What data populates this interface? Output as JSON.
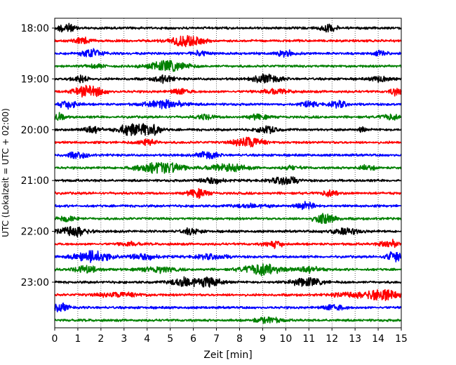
{
  "chart_data": {
    "type": "line",
    "subtype": "helicorder-seismogram",
    "title": "",
    "xlabel": "Zeit  [min]",
    "ylabel": "UTC (Lokalzeit = UTC + 02:00)",
    "xlim": [
      0,
      15
    ],
    "x_ticks": [
      "0",
      "1",
      "2",
      "3",
      "4",
      "5",
      "6",
      "7",
      "8",
      "9",
      "10",
      "11",
      "12",
      "13",
      "14",
      "15"
    ],
    "y_tick_labels": [
      "18:00",
      "19:00",
      "20:00",
      "21:00",
      "22:00",
      "23:00"
    ],
    "rows_per_hour": 4,
    "row_minutes": 15,
    "grid": "vertical dotted at each minute",
    "color_cycle": [
      "#000000",
      "#ff0000",
      "#0000ff",
      "#008000"
    ],
    "series": [
      {
        "start": "18:00",
        "bursts": [
          {
            "t": 0.5,
            "a": 0.9,
            "w": 0.25
          },
          {
            "t": 11.8,
            "a": 0.6,
            "w": 0.3
          }
        ]
      },
      {
        "start": "18:15",
        "bursts": [
          {
            "t": 1.2,
            "a": 0.5,
            "w": 0.3
          },
          {
            "t": 5.7,
            "a": 1.0,
            "w": 0.5
          }
        ]
      },
      {
        "start": "18:30",
        "bursts": [
          {
            "t": 1.6,
            "a": 0.8,
            "w": 0.3
          },
          {
            "t": 6.3,
            "a": 0.4,
            "w": 0.3
          },
          {
            "t": 10.0,
            "a": 0.5,
            "w": 0.3
          },
          {
            "t": 14.1,
            "a": 0.4,
            "w": 0.2
          }
        ]
      },
      {
        "start": "18:45",
        "bursts": [
          {
            "t": 4.9,
            "a": 0.9,
            "w": 0.6
          },
          {
            "t": 1.8,
            "a": 0.3,
            "w": 0.3
          }
        ]
      },
      {
        "start": "19:00",
        "bursts": [
          {
            "t": 1.1,
            "a": 0.6,
            "w": 0.3
          },
          {
            "t": 4.7,
            "a": 0.6,
            "w": 0.3
          },
          {
            "t": 9.2,
            "a": 0.8,
            "w": 0.4
          },
          {
            "t": 14.1,
            "a": 0.5,
            "w": 0.3
          }
        ]
      },
      {
        "start": "19:15",
        "bursts": [
          {
            "t": 1.5,
            "a": 1.0,
            "w": 0.45
          },
          {
            "t": 5.5,
            "a": 0.5,
            "w": 0.3
          },
          {
            "t": 9.5,
            "a": 0.4,
            "w": 0.5
          },
          {
            "t": 14.8,
            "a": 0.6,
            "w": 0.2
          }
        ]
      },
      {
        "start": "19:30",
        "bursts": [
          {
            "t": 0.6,
            "a": 0.7,
            "w": 0.3
          },
          {
            "t": 4.8,
            "a": 0.7,
            "w": 0.6
          },
          {
            "t": 11.0,
            "a": 0.4,
            "w": 0.3
          },
          {
            "t": 12.3,
            "a": 0.5,
            "w": 0.3
          }
        ]
      },
      {
        "start": "19:45",
        "bursts": [
          {
            "t": 0.2,
            "a": 0.6,
            "w": 0.2
          },
          {
            "t": 6.5,
            "a": 0.4,
            "w": 0.3
          },
          {
            "t": 8.8,
            "a": 0.4,
            "w": 0.3
          },
          {
            "t": 14.5,
            "a": 0.5,
            "w": 0.3
          }
        ]
      },
      {
        "start": "20:00",
        "bursts": [
          {
            "t": 1.6,
            "a": 0.6,
            "w": 0.3
          },
          {
            "t": 3.2,
            "a": 0.9,
            "w": 0.35
          },
          {
            "t": 4.1,
            "a": 1.0,
            "w": 0.35
          },
          {
            "t": 9.2,
            "a": 0.6,
            "w": 0.3
          },
          {
            "t": 13.3,
            "a": 0.4,
            "w": 0.1
          }
        ]
      },
      {
        "start": "20:15",
        "bursts": [
          {
            "t": 4.0,
            "a": 0.6,
            "w": 0.3
          },
          {
            "t": 8.4,
            "a": 0.9,
            "w": 0.45
          }
        ]
      },
      {
        "start": "20:30",
        "bursts": [
          {
            "t": 1.0,
            "a": 0.6,
            "w": 0.3
          },
          {
            "t": 6.6,
            "a": 0.7,
            "w": 0.3
          }
        ]
      },
      {
        "start": "20:45",
        "bursts": [
          {
            "t": 4.6,
            "a": 1.0,
            "w": 0.7
          },
          {
            "t": 7.5,
            "a": 0.6,
            "w": 0.6
          },
          {
            "t": 10.3,
            "a": 0.3,
            "w": 0.3
          },
          {
            "t": 13.5,
            "a": 0.4,
            "w": 0.3
          }
        ]
      },
      {
        "start": "21:00",
        "bursts": [
          {
            "t": 6.8,
            "a": 0.5,
            "w": 0.4
          },
          {
            "t": 10.0,
            "a": 0.7,
            "w": 0.4
          }
        ]
      },
      {
        "start": "21:15",
        "bursts": [
          {
            "t": 6.2,
            "a": 0.7,
            "w": 0.3
          },
          {
            "t": 11.9,
            "a": 0.5,
            "w": 0.3
          }
        ]
      },
      {
        "start": "21:30",
        "bursts": [
          {
            "t": 8.5,
            "a": 0.3,
            "w": 0.5
          },
          {
            "t": 10.9,
            "a": 0.6,
            "w": 0.3
          }
        ]
      },
      {
        "start": "21:45",
        "bursts": [
          {
            "t": 0.6,
            "a": 0.5,
            "w": 0.3
          },
          {
            "t": 11.7,
            "a": 0.8,
            "w": 0.35
          }
        ]
      },
      {
        "start": "22:00",
        "bursts": [
          {
            "t": 0.8,
            "a": 0.9,
            "w": 0.45
          },
          {
            "t": 5.9,
            "a": 0.5,
            "w": 0.3
          },
          {
            "t": 12.5,
            "a": 0.5,
            "w": 0.5
          }
        ]
      },
      {
        "start": "22:15",
        "bursts": [
          {
            "t": 3.2,
            "a": 0.4,
            "w": 0.3
          },
          {
            "t": 9.5,
            "a": 0.6,
            "w": 0.3
          },
          {
            "t": 14.5,
            "a": 0.7,
            "w": 0.3
          }
        ]
      },
      {
        "start": "22:30",
        "bursts": [
          {
            "t": 1.6,
            "a": 1.0,
            "w": 0.55
          },
          {
            "t": 3.8,
            "a": 0.5,
            "w": 0.5
          },
          {
            "t": 6.8,
            "a": 0.4,
            "w": 0.5
          },
          {
            "t": 14.7,
            "a": 0.9,
            "w": 0.25
          }
        ]
      },
      {
        "start": "22:45",
        "bursts": [
          {
            "t": 1.4,
            "a": 0.6,
            "w": 0.4
          },
          {
            "t": 4.5,
            "a": 0.5,
            "w": 0.5
          },
          {
            "t": 9.0,
            "a": 1.0,
            "w": 0.6
          },
          {
            "t": 11.0,
            "a": 0.5,
            "w": 0.4
          }
        ]
      },
      {
        "start": "23:00",
        "bursts": [
          {
            "t": 5.7,
            "a": 0.8,
            "w": 0.45
          },
          {
            "t": 6.8,
            "a": 0.9,
            "w": 0.3
          },
          {
            "t": 10.9,
            "a": 0.7,
            "w": 0.5
          }
        ]
      },
      {
        "start": "23:15",
        "bursts": [
          {
            "t": 2.8,
            "a": 0.4,
            "w": 0.7
          },
          {
            "t": 14.1,
            "a": 1.0,
            "w": 0.5
          },
          {
            "t": 12.7,
            "a": 0.4,
            "w": 0.5
          }
        ]
      },
      {
        "start": "23:30",
        "bursts": [
          {
            "t": 0.3,
            "a": 0.7,
            "w": 0.25
          },
          {
            "t": 12.1,
            "a": 0.6,
            "w": 0.3
          }
        ]
      },
      {
        "start": "23:45",
        "bursts": [
          {
            "t": 9.2,
            "a": 0.5,
            "w": 0.4
          }
        ]
      }
    ]
  }
}
